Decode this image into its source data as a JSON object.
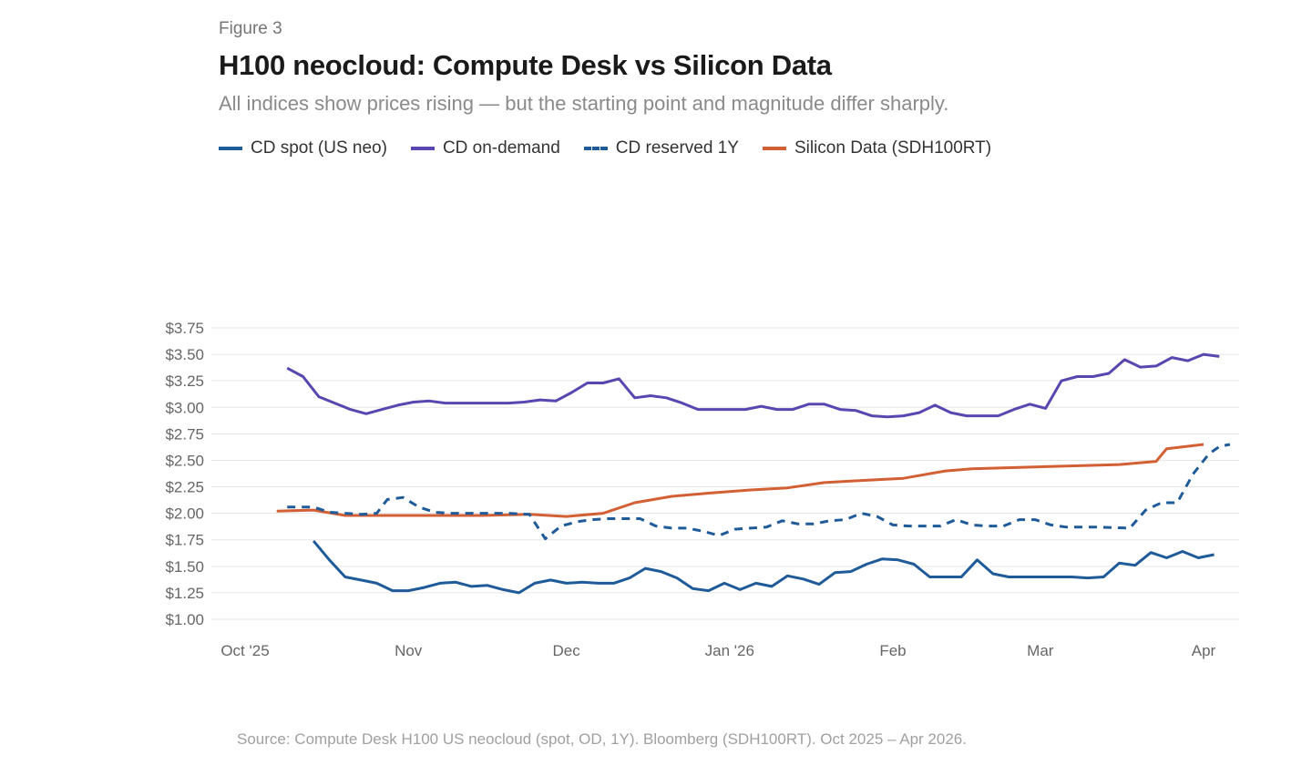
{
  "figure_label": "Figure 3",
  "source": "Source: Compute Desk H100 US neocloud (spot, OD, 1Y). Bloomberg (SDH100RT). Oct 2025 – Apr 2026.",
  "chart_data": {
    "type": "line",
    "title": "H100 neocloud: Compute Desk vs Silicon Data",
    "subtitle": "All indices show prices rising — but the starting point and magnitude differ sharply.",
    "xlabel": "",
    "ylabel": "",
    "xlim": [
      "2025-10-01",
      "2026-04-06"
    ],
    "ylim": [
      1.0,
      3.75
    ],
    "grid": "horizontal",
    "legend_position": "top-left",
    "x_ticks": [
      {
        "date": "2025-10-01",
        "label": "Oct '25"
      },
      {
        "date": "2025-11-01",
        "label": "Nov"
      },
      {
        "date": "2025-12-01",
        "label": "Dec"
      },
      {
        "date": "2026-01-01",
        "label": "Jan '26"
      },
      {
        "date": "2026-02-01",
        "label": "Feb"
      },
      {
        "date": "2026-03-01",
        "label": "Mar"
      },
      {
        "date": "2026-04-01",
        "label": "Apr"
      }
    ],
    "y_ticks": [
      {
        "value": 1.0,
        "label": "$1.00"
      },
      {
        "value": 1.25,
        "label": "$1.25"
      },
      {
        "value": 1.5,
        "label": "$1.50"
      },
      {
        "value": 1.75,
        "label": "$1.75"
      },
      {
        "value": 2.0,
        "label": "$2.00"
      },
      {
        "value": 2.25,
        "label": "$2.25"
      },
      {
        "value": 2.5,
        "label": "$2.50"
      },
      {
        "value": 2.75,
        "label": "$2.75"
      },
      {
        "value": 3.0,
        "label": "$3.00"
      },
      {
        "value": 3.25,
        "label": "$3.25"
      },
      {
        "value": 3.5,
        "label": "$3.50"
      },
      {
        "value": 3.75,
        "label": "$3.75"
      }
    ],
    "series": [
      {
        "name": "CD spot (US neo)",
        "color": "#1f5b99",
        "dash": false,
        "x": [
          "2025-10-14",
          "2025-10-17",
          "2025-10-20",
          "2025-10-23",
          "2025-10-26",
          "2025-10-29",
          "2025-11-01",
          "2025-11-04",
          "2025-11-07",
          "2025-11-10",
          "2025-11-13",
          "2025-11-16",
          "2025-11-19",
          "2025-11-22",
          "2025-11-25",
          "2025-11-28",
          "2025-12-01",
          "2025-12-04",
          "2025-12-07",
          "2025-12-10",
          "2025-12-13",
          "2025-12-16",
          "2025-12-19",
          "2025-12-22",
          "2025-12-25",
          "2025-12-28",
          "2025-12-31",
          "2026-01-03",
          "2026-01-06",
          "2026-01-09",
          "2026-01-12",
          "2026-01-15",
          "2026-01-18",
          "2026-01-21",
          "2026-01-24",
          "2026-01-27",
          "2026-01-30",
          "2026-02-02",
          "2026-02-05",
          "2026-02-08",
          "2026-02-11",
          "2026-02-14",
          "2026-02-17",
          "2026-02-20",
          "2026-02-23",
          "2026-02-26",
          "2026-03-01",
          "2026-03-04",
          "2026-03-07",
          "2026-03-10",
          "2026-03-13",
          "2026-03-16",
          "2026-03-19",
          "2026-03-22",
          "2026-03-25",
          "2026-03-28",
          "2026-03-31",
          "2026-04-03"
        ],
        "y": [
          1.74,
          1.56,
          1.4,
          1.37,
          1.34,
          1.27,
          1.27,
          1.3,
          1.34,
          1.35,
          1.31,
          1.32,
          1.28,
          1.25,
          1.34,
          1.37,
          1.34,
          1.35,
          1.34,
          1.34,
          1.39,
          1.48,
          1.45,
          1.39,
          1.29,
          1.27,
          1.34,
          1.28,
          1.34,
          1.31,
          1.41,
          1.38,
          1.33,
          1.44,
          1.45,
          1.52,
          1.57,
          1.56,
          1.52,
          1.4,
          1.4,
          1.4,
          1.56,
          1.43,
          1.4,
          1.4,
          1.4,
          1.4,
          1.4,
          1.39,
          1.4,
          1.53,
          1.51,
          1.63,
          1.58,
          1.64,
          1.58,
          1.61
        ]
      },
      {
        "name": "CD on-demand",
        "color": "#5a46b0",
        "dash": false,
        "x": [
          "2025-10-09",
          "2025-10-12",
          "2025-10-15",
          "2025-10-18",
          "2025-10-21",
          "2025-10-24",
          "2025-10-27",
          "2025-10-30",
          "2025-11-02",
          "2025-11-05",
          "2025-11-08",
          "2025-11-11",
          "2025-11-14",
          "2025-11-17",
          "2025-11-20",
          "2025-11-23",
          "2025-11-26",
          "2025-11-29",
          "2025-12-02",
          "2025-12-05",
          "2025-12-08",
          "2025-12-11",
          "2025-12-14",
          "2025-12-17",
          "2025-12-20",
          "2025-12-23",
          "2025-12-26",
          "2025-12-29",
          "2026-01-01",
          "2026-01-04",
          "2026-01-07",
          "2026-01-10",
          "2026-01-13",
          "2026-01-16",
          "2026-01-19",
          "2026-01-22",
          "2026-01-25",
          "2026-01-28",
          "2026-01-31",
          "2026-02-03",
          "2026-02-06",
          "2026-02-09",
          "2026-02-12",
          "2026-02-15",
          "2026-02-18",
          "2026-02-21",
          "2026-02-24",
          "2026-02-27",
          "2026-03-02",
          "2026-03-05",
          "2026-03-08",
          "2026-03-11",
          "2026-03-14",
          "2026-03-17",
          "2026-03-20",
          "2026-03-23",
          "2026-03-26",
          "2026-03-29",
          "2026-04-01",
          "2026-04-04"
        ],
        "y": [
          3.37,
          3.29,
          3.1,
          3.04,
          2.98,
          2.94,
          2.98,
          3.02,
          3.05,
          3.06,
          3.04,
          3.04,
          3.04,
          3.04,
          3.04,
          3.05,
          3.07,
          3.06,
          3.14,
          3.23,
          3.23,
          3.27,
          3.09,
          3.11,
          3.09,
          3.04,
          2.98,
          2.98,
          2.98,
          2.98,
          3.01,
          2.98,
          2.98,
          3.03,
          3.03,
          2.98,
          2.97,
          2.92,
          2.91,
          2.92,
          2.95,
          3.02,
          2.95,
          2.92,
          2.92,
          2.92,
          2.98,
          3.03,
          2.99,
          3.25,
          3.29,
          3.29,
          3.32,
          3.45,
          3.38,
          3.39,
          3.47,
          3.44,
          3.5,
          3.48
        ]
      },
      {
        "name": "CD reserved 1Y",
        "color": "#1f5b99",
        "dash": true,
        "x": [
          "2025-10-09",
          "2025-10-14",
          "2025-10-17",
          "2025-10-20",
          "2025-10-23",
          "2025-10-26",
          "2025-10-28",
          "2025-10-31",
          "2025-11-03",
          "2025-11-06",
          "2025-11-09",
          "2025-11-15",
          "2025-11-20",
          "2025-11-24",
          "2025-11-27",
          "2025-11-30",
          "2025-12-03",
          "2025-12-06",
          "2025-12-09",
          "2025-12-15",
          "2025-12-18",
          "2025-12-21",
          "2025-12-24",
          "2025-12-27",
          "2025-12-30",
          "2026-01-02",
          "2026-01-05",
          "2026-01-08",
          "2026-01-11",
          "2026-01-14",
          "2026-01-17",
          "2026-01-20",
          "2026-01-23",
          "2026-01-26",
          "2026-01-29",
          "2026-02-01",
          "2026-02-04",
          "2026-02-10",
          "2026-02-13",
          "2026-02-16",
          "2026-02-19",
          "2026-02-22",
          "2026-02-25",
          "2026-02-28",
          "2026-03-03",
          "2026-03-06",
          "2026-03-12",
          "2026-03-18",
          "2026-03-21",
          "2026-03-24",
          "2026-03-27",
          "2026-03-30",
          "2026-04-02",
          "2026-04-04",
          "2026-04-06"
        ],
        "y": [
          2.06,
          2.06,
          2.01,
          2.0,
          1.99,
          2.0,
          2.13,
          2.15,
          2.06,
          2.01,
          2.0,
          2.0,
          2.0,
          1.99,
          1.76,
          1.88,
          1.92,
          1.94,
          1.95,
          1.95,
          1.88,
          1.86,
          1.86,
          1.83,
          1.79,
          1.85,
          1.86,
          1.87,
          1.93,
          1.9,
          1.9,
          1.93,
          1.94,
          2.0,
          1.97,
          1.89,
          1.88,
          1.88,
          1.94,
          1.89,
          1.88,
          1.88,
          1.94,
          1.94,
          1.89,
          1.87,
          1.87,
          1.86,
          2.03,
          2.1,
          2.1,
          2.37,
          2.56,
          2.63,
          2.65
        ]
      },
      {
        "name": "Silicon Data (SDH100RT)",
        "color": "#d35f34",
        "dash": false,
        "x": [
          "2025-10-07",
          "2025-10-14",
          "2025-10-20",
          "2025-11-01",
          "2025-11-15",
          "2025-11-24",
          "2025-12-01",
          "2025-12-08",
          "2025-12-14",
          "2025-12-21",
          "2025-12-28",
          "2026-01-05",
          "2026-01-12",
          "2026-01-19",
          "2026-01-26",
          "2026-02-03",
          "2026-02-11",
          "2026-02-16",
          "2026-03-02",
          "2026-03-16",
          "2026-03-23",
          "2026-03-25",
          "2026-04-01"
        ],
        "y": [
          2.02,
          2.03,
          1.98,
          1.98,
          1.98,
          1.99,
          1.97,
          2.0,
          2.1,
          2.16,
          2.19,
          2.22,
          2.24,
          2.29,
          2.31,
          2.33,
          2.4,
          2.42,
          2.44,
          2.46,
          2.49,
          2.61,
          2.65
        ]
      }
    ]
  }
}
